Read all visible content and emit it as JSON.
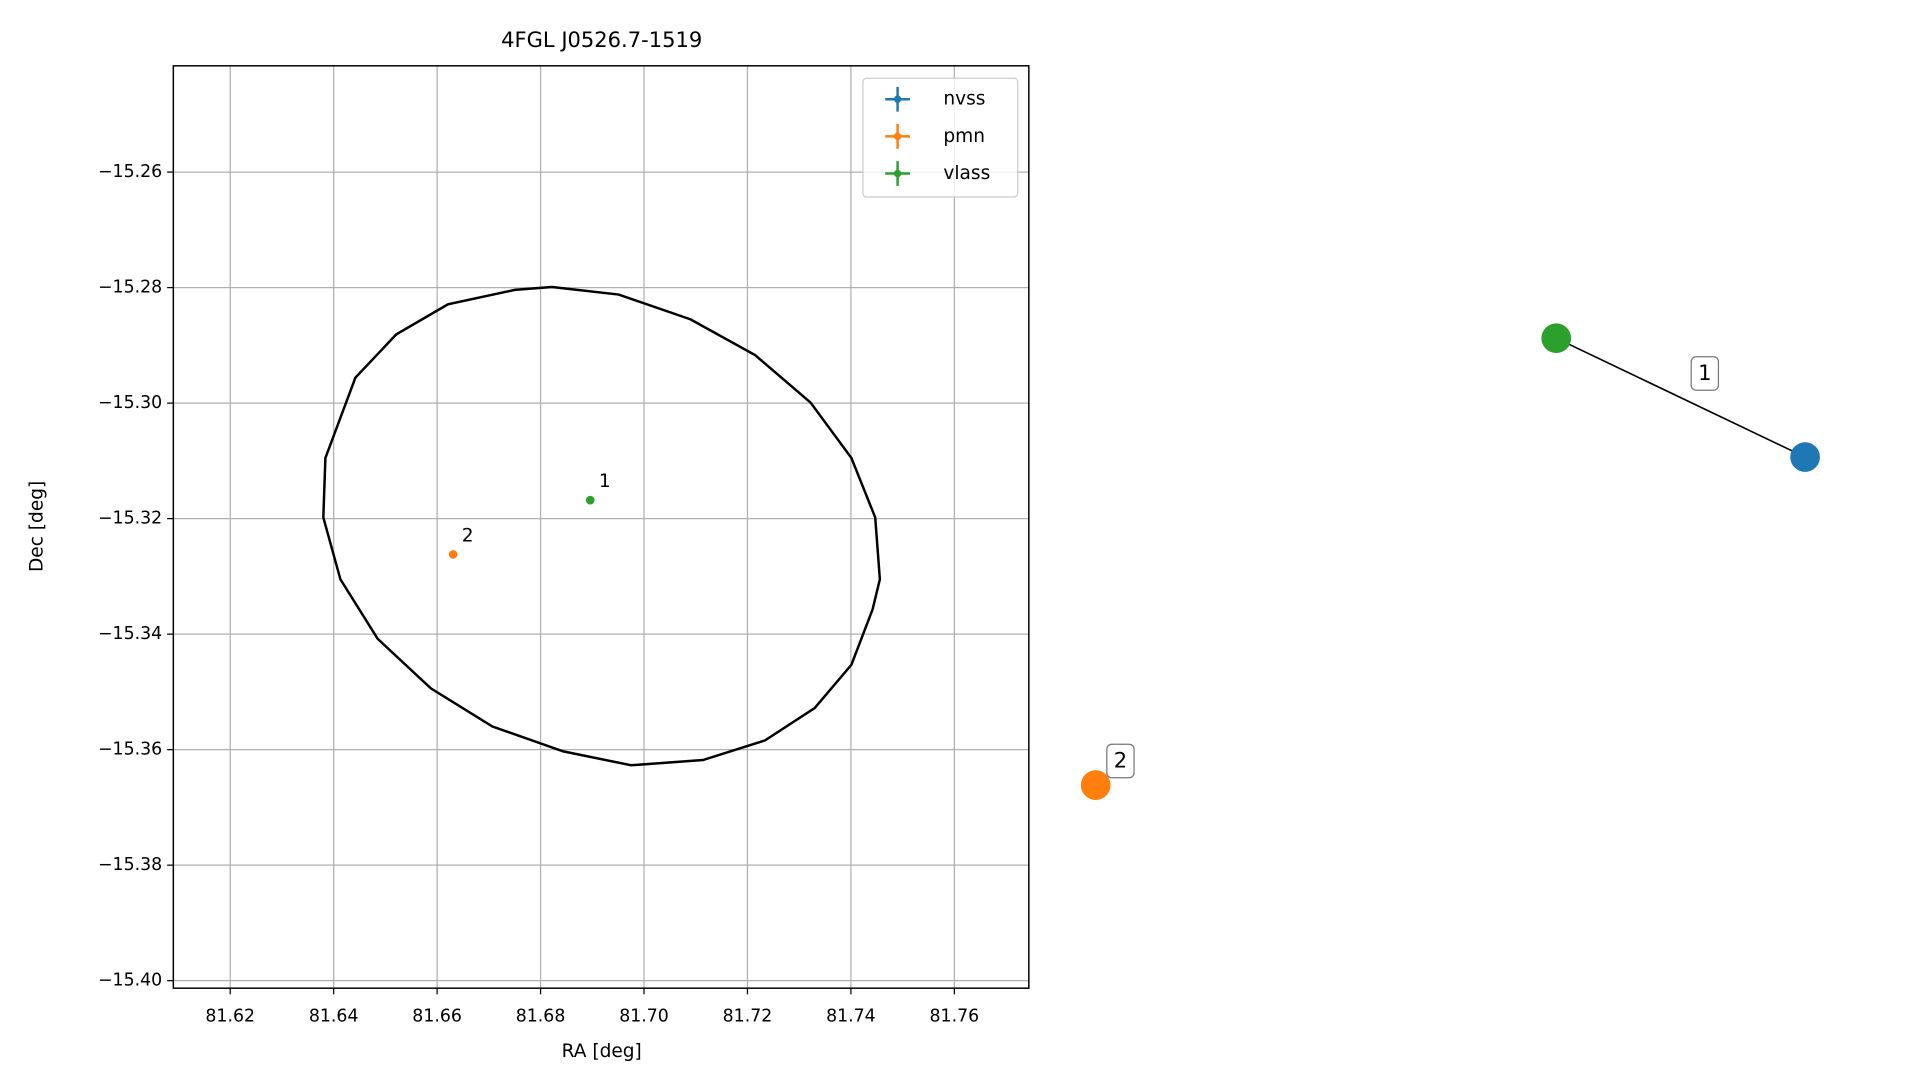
{
  "chart_data": {
    "type": "scatter",
    "title": "4FGL J0526.7-1519",
    "xlabel": "RA [deg]",
    "ylabel": "Dec [deg]",
    "xlim": [
      81.609,
      81.7744
    ],
    "ylim": [
      -15.4013,
      -15.2416
    ],
    "xticks": [
      81.62,
      81.64,
      81.66,
      81.68,
      {
        "value": 81.7,
        "label": "81.70"
      },
      81.72,
      81.74,
      81.76
    ],
    "yticks": [
      {
        "value": -15.26,
        "label": "−15.26"
      },
      {
        "value": -15.28,
        "label": "−15.28"
      },
      {
        "value": -15.3,
        "label": "−15.30"
      },
      {
        "value": -15.32,
        "label": "−15.32"
      },
      {
        "value": -15.34,
        "label": "−15.34"
      },
      {
        "value": -15.36,
        "label": "−15.36"
      },
      {
        "value": -15.38,
        "label": "−15.38"
      },
      {
        "value": -15.4,
        "label": "−15.40"
      }
    ],
    "grid": true,
    "legend": "upper right",
    "series": [
      {
        "name": "nvss",
        "color": "#1f77b4",
        "x": [],
        "values": [],
        "labels": []
      },
      {
        "name": "pmn",
        "color": "#ff7f0e",
        "x": [
          81.6631
        ],
        "values": [
          -15.3262
        ],
        "labels": [
          "2"
        ]
      },
      {
        "name": "vlass",
        "color": "#2ca02c",
        "x": [
          81.6896
        ],
        "values": [
          -15.3168
        ],
        "labels": [
          "1"
        ]
      }
    ],
    "ellipse": {
      "color": "#000000",
      "x": [
        81.6822,
        81.6951,
        81.709,
        81.7215,
        81.7322,
        81.7401,
        81.7447,
        81.7456,
        81.7442,
        81.7401,
        81.733,
        81.7234,
        81.7114,
        81.6975,
        81.6844,
        81.6707,
        81.6588,
        81.6485,
        81.6413,
        81.638,
        81.6384,
        81.6442,
        81.6521,
        81.6621,
        81.675,
        81.6822
      ],
      "values": [
        -15.2799,
        -15.2812,
        -15.2855,
        -15.2917,
        -15.2999,
        -15.3095,
        -15.3198,
        -15.3305,
        -15.3357,
        -15.3453,
        -15.3528,
        -15.3584,
        -15.3618,
        -15.3627,
        -15.3603,
        -15.356,
        -15.3494,
        -15.3408,
        -15.3305,
        -15.3198,
        -15.3095,
        -15.2956,
        -15.2881,
        -15.2829,
        -15.2804,
        -15.2799
      ]
    }
  },
  "graph": {
    "labels": [
      "1",
      "2"
    ]
  }
}
